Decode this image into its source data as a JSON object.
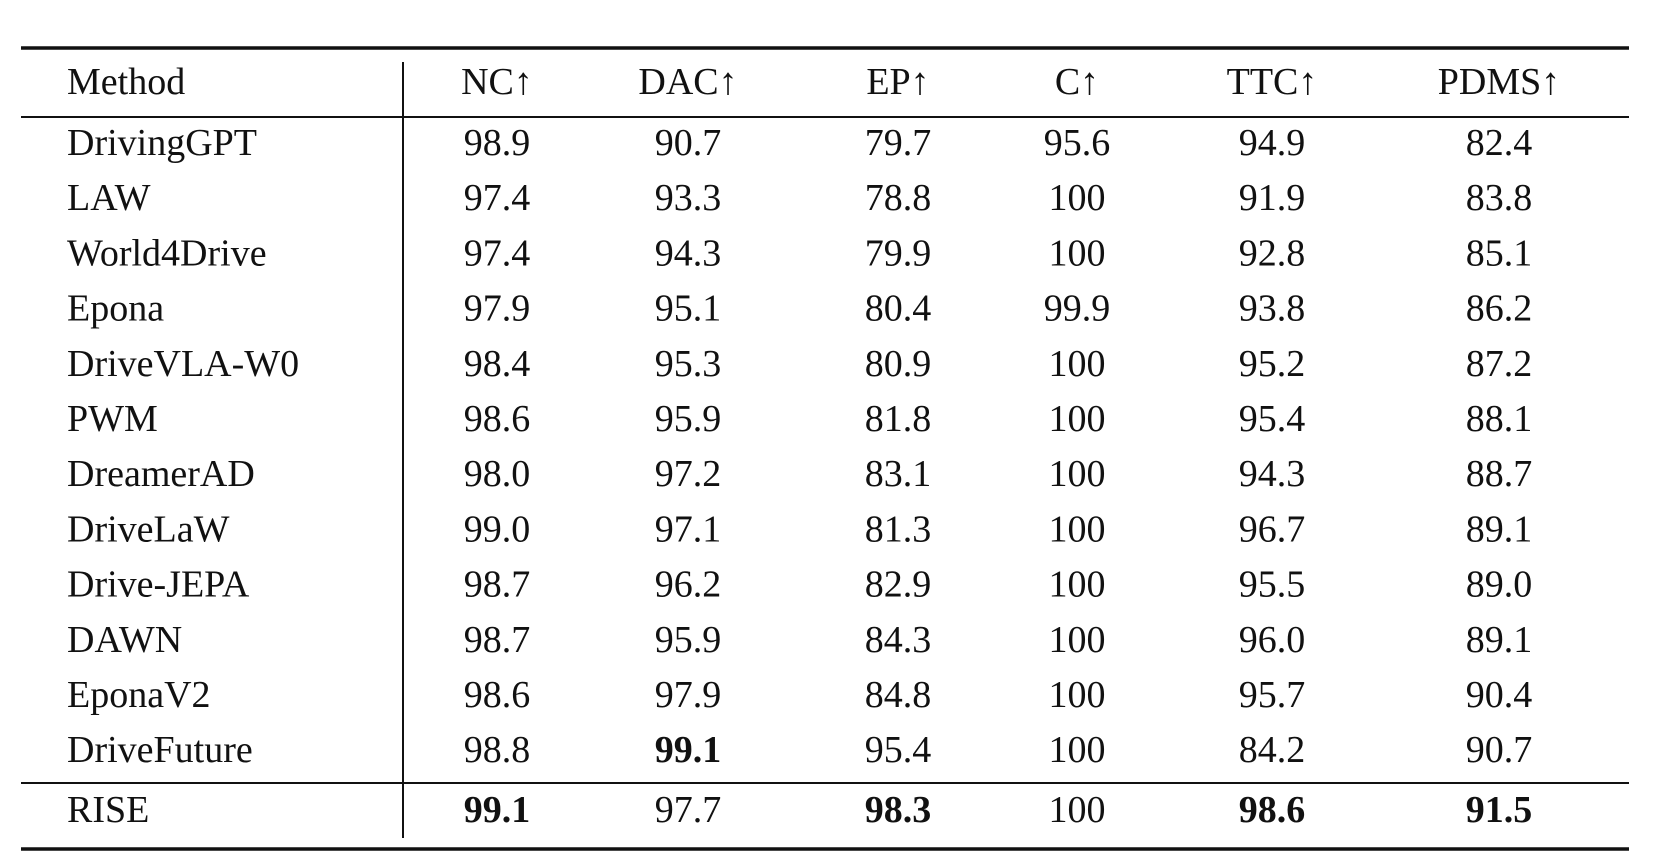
{
  "table": {
    "header": [
      "Method",
      "NC↑",
      "DAC↑",
      "EP↑",
      "C↑",
      "TTC↑",
      "PDMS↑"
    ],
    "rows": [
      [
        "DrivingGPT",
        "98.9",
        "90.7",
        "79.7",
        "95.6",
        "94.9",
        "82.4"
      ],
      [
        "LAW",
        "97.4",
        "93.3",
        "78.8",
        "100",
        "91.9",
        "83.8"
      ],
      [
        "World4Drive",
        "97.4",
        "94.3",
        "79.9",
        "100",
        "92.8",
        "85.1"
      ],
      [
        "Epona",
        "97.9",
        "95.1",
        "80.4",
        "99.9",
        "93.8",
        "86.2"
      ],
      [
        "DriveVLA-W0",
        "98.4",
        "95.3",
        "80.9",
        "100",
        "95.2",
        "87.2"
      ],
      [
        "PWM",
        "98.6",
        "95.9",
        "81.8",
        "100",
        "95.4",
        "88.1"
      ],
      [
        "DreamerAD",
        "98.0",
        "97.2",
        "83.1",
        "100",
        "94.3",
        "88.7"
      ],
      [
        "DriveLaW",
        "99.0",
        "97.1",
        "81.3",
        "100",
        "96.7",
        "89.1"
      ],
      [
        "Drive-JEPA",
        "98.7",
        "96.2",
        "82.9",
        "100",
        "95.5",
        "89.0"
      ],
      [
        "DAWN",
        "98.7",
        "95.9",
        "84.3",
        "100",
        "96.0",
        "89.1"
      ],
      [
        "EponaV2",
        "98.6",
        "97.9",
        "84.8",
        "100",
        "95.7",
        "90.4"
      ],
      [
        "DriveFuture",
        "98.8",
        "99.1",
        "95.4",
        "100",
        "84.2",
        "90.7"
      ],
      [
        "RISE",
        "99.1",
        "97.7",
        "98.3",
        "100",
        "98.6",
        "91.5"
      ]
    ]
  }
}
